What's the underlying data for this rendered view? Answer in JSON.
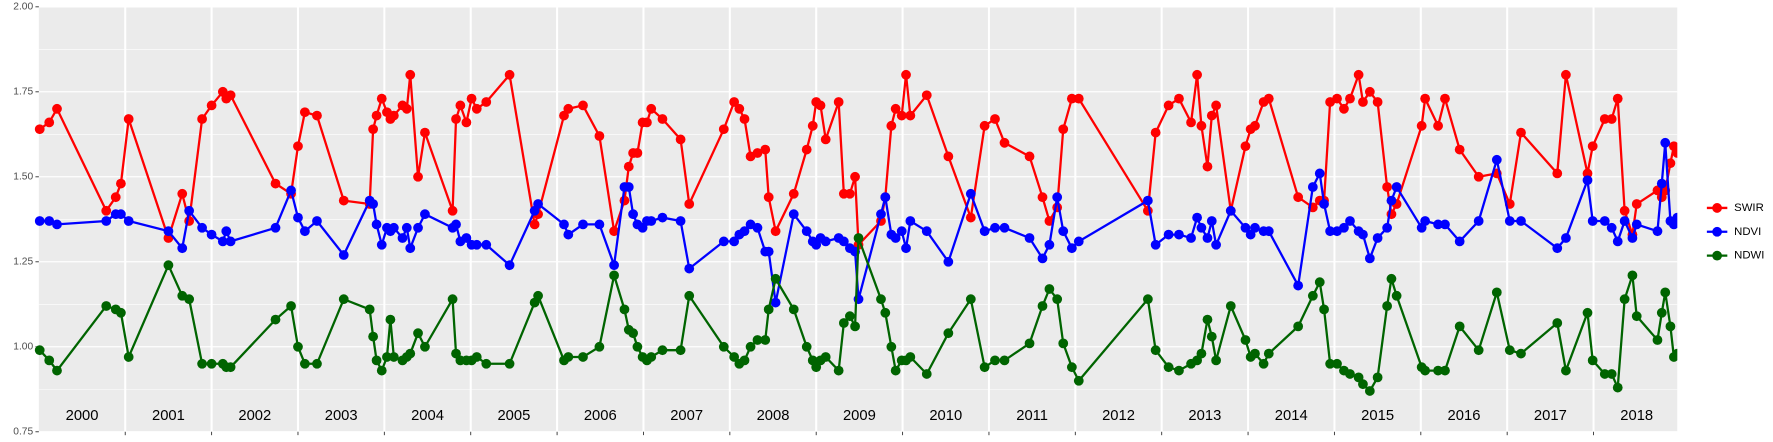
{
  "chart_data": {
    "type": "line",
    "x": [
      2000.01,
      2000.12,
      2000.21,
      2000.78,
      2000.89,
      2000.95,
      2001.04,
      2001.5,
      2001.66,
      2001.74,
      2001.89,
      2002.0,
      2002.13,
      2002.17,
      2002.22,
      2002.74,
      2002.92,
      2003.0,
      2003.08,
      2003.22,
      2003.53,
      2003.83,
      2003.87,
      2003.91,
      2003.97,
      2004.03,
      2004.07,
      2004.11,
      2004.21,
      2004.26,
      2004.3,
      2004.39,
      2004.47,
      2004.79,
      2004.83,
      2004.88,
      2004.95,
      2005.01,
      2005.07,
      2005.18,
      2005.45,
      2005.74,
      2005.78,
      2006.08,
      2006.13,
      2006.3,
      2006.49,
      2006.66,
      2006.78,
      2006.83,
      2006.88,
      2006.93,
      2006.99,
      2007.04,
      2007.09,
      2007.22,
      2007.43,
      2007.53,
      2007.93,
      2008.05,
      2008.11,
      2008.17,
      2008.24,
      2008.32,
      2008.41,
      2008.45,
      2008.53,
      2008.74,
      2008.89,
      2008.96,
      2009.0,
      2009.05,
      2009.11,
      2009.26,
      2009.32,
      2009.39,
      2009.45,
      2009.49,
      2009.75,
      2009.8,
      2009.87,
      2009.92,
      2009.99,
      2010.04,
      2010.09,
      2010.28,
      2010.53,
      2010.79,
      2010.95,
      2011.07,
      2011.18,
      2011.47,
      2011.62,
      2011.7,
      2011.79,
      2011.86,
      2011.96,
      2012.04,
      2012.84,
      2012.93,
      2013.08,
      2013.2,
      2013.34,
      2013.41,
      2013.46,
      2013.53,
      2013.58,
      2013.63,
      2013.8,
      2013.97,
      2014.03,
      2014.08,
      2014.18,
      2014.24,
      2014.58,
      2014.75,
      2014.83,
      2014.88,
      2014.95,
      2015.03,
      2015.11,
      2015.18,
      2015.28,
      2015.33,
      2015.41,
      2015.5,
      2015.61,
      2015.66,
      2015.72,
      2016.01,
      2016.05,
      2016.2,
      2016.28,
      2016.45,
      2016.67,
      2016.88,
      2017.03,
      2017.16,
      2017.58,
      2017.68,
      2017.93,
      2017.99,
      2018.13,
      2018.21,
      2018.28,
      2018.36,
      2018.45,
      2018.5,
      2018.74,
      2018.79,
      2018.83,
      2018.89,
      2018.93,
      2018.97
    ],
    "series": [
      {
        "name": "SWIR",
        "color": "#ff0000",
        "values": [
          1.64,
          1.66,
          1.7,
          1.4,
          1.44,
          1.48,
          1.67,
          1.32,
          1.45,
          1.37,
          1.67,
          1.71,
          1.75,
          1.73,
          1.74,
          1.48,
          1.45,
          1.59,
          1.69,
          1.68,
          1.43,
          1.42,
          1.64,
          1.68,
          1.73,
          1.69,
          1.67,
          1.68,
          1.71,
          1.7,
          1.8,
          1.5,
          1.63,
          1.4,
          1.67,
          1.71,
          1.66,
          1.73,
          1.7,
          1.72,
          1.8,
          1.36,
          1.39,
          1.68,
          1.7,
          1.71,
          1.62,
          1.34,
          1.43,
          1.53,
          1.57,
          1.57,
          1.66,
          1.66,
          1.7,
          1.67,
          1.61,
          1.42,
          1.64,
          1.72,
          1.7,
          1.67,
          1.56,
          1.57,
          1.58,
          1.44,
          1.34,
          1.45,
          1.58,
          1.65,
          1.72,
          1.71,
          1.61,
          1.72,
          1.45,
          1.45,
          1.5,
          1.3,
          1.37,
          1.44,
          1.65,
          1.7,
          1.68,
          1.8,
          1.68,
          1.74,
          1.56,
          1.38,
          1.65,
          1.67,
          1.6,
          1.56,
          1.44,
          1.37,
          1.41,
          1.64,
          1.73,
          1.73,
          1.4,
          1.63,
          1.71,
          1.73,
          1.66,
          1.8,
          1.65,
          1.53,
          1.68,
          1.71,
          1.4,
          1.59,
          1.64,
          1.65,
          1.72,
          1.73,
          1.44,
          1.41,
          1.43,
          1.43,
          1.72,
          1.73,
          1.7,
          1.73,
          1.8,
          1.72,
          1.75,
          1.72,
          1.47,
          1.39,
          1.42,
          1.65,
          1.73,
          1.65,
          1.73,
          1.58,
          1.5,
          1.51,
          1.42,
          1.63,
          1.51,
          1.8,
          1.51,
          1.59,
          1.67,
          1.67,
          1.73,
          1.4,
          1.33,
          1.42,
          1.46,
          1.44,
          1.46,
          1.54,
          1.59,
          1.57
        ]
      },
      {
        "name": "NDVI",
        "color": "#0000ff",
        "values": [
          1.37,
          1.37,
          1.36,
          1.37,
          1.39,
          1.39,
          1.37,
          1.34,
          1.29,
          1.4,
          1.35,
          1.33,
          1.31,
          1.34,
          1.31,
          1.35,
          1.46,
          1.38,
          1.34,
          1.37,
          1.27,
          1.43,
          1.42,
          1.36,
          1.3,
          1.35,
          1.34,
          1.35,
          1.32,
          1.35,
          1.29,
          1.35,
          1.39,
          1.35,
          1.36,
          1.31,
          1.32,
          1.3,
          1.3,
          1.3,
          1.24,
          1.4,
          1.42,
          1.36,
          1.33,
          1.36,
          1.36,
          1.24,
          1.47,
          1.47,
          1.39,
          1.36,
          1.35,
          1.37,
          1.37,
          1.38,
          1.37,
          1.23,
          1.31,
          1.31,
          1.33,
          1.34,
          1.36,
          1.35,
          1.28,
          1.28,
          1.13,
          1.39,
          1.34,
          1.31,
          1.3,
          1.32,
          1.31,
          1.32,
          1.31,
          1.29,
          1.28,
          1.14,
          1.39,
          1.44,
          1.33,
          1.32,
          1.34,
          1.29,
          1.37,
          1.34,
          1.25,
          1.45,
          1.34,
          1.35,
          1.35,
          1.32,
          1.26,
          1.3,
          1.44,
          1.34,
          1.29,
          1.31,
          1.43,
          1.3,
          1.33,
          1.33,
          1.32,
          1.38,
          1.35,
          1.32,
          1.37,
          1.3,
          1.4,
          1.35,
          1.33,
          1.35,
          1.34,
          1.34,
          1.18,
          1.47,
          1.51,
          1.42,
          1.34,
          1.34,
          1.35,
          1.37,
          1.34,
          1.33,
          1.26,
          1.32,
          1.35,
          1.43,
          1.47,
          1.35,
          1.37,
          1.36,
          1.36,
          1.31,
          1.37,
          1.55,
          1.37,
          1.37,
          1.29,
          1.32,
          1.49,
          1.37,
          1.37,
          1.35,
          1.31,
          1.37,
          1.32,
          1.36,
          1.34,
          1.48,
          1.6,
          1.37,
          1.36,
          1.38
        ]
      },
      {
        "name": "NDWI",
        "color": "#006400",
        "values": [
          0.99,
          0.96,
          0.93,
          1.12,
          1.11,
          1.1,
          0.97,
          1.24,
          1.15,
          1.14,
          0.95,
          0.95,
          0.95,
          0.94,
          0.94,
          1.08,
          1.12,
          1.0,
          0.95,
          0.95,
          1.14,
          1.11,
          1.03,
          0.96,
          0.93,
          0.97,
          1.08,
          0.97,
          0.96,
          0.97,
          0.98,
          1.04,
          1.0,
          1.14,
          0.98,
          0.96,
          0.96,
          0.96,
          0.97,
          0.95,
          0.95,
          1.13,
          1.15,
          0.96,
          0.97,
          0.97,
          1.0,
          1.21,
          1.11,
          1.05,
          1.04,
          1.0,
          0.97,
          0.96,
          0.97,
          0.99,
          0.99,
          1.15,
          1.0,
          0.97,
          0.95,
          0.96,
          1.0,
          1.02,
          1.02,
          1.11,
          1.2,
          1.11,
          1.0,
          0.96,
          0.94,
          0.96,
          0.97,
          0.93,
          1.07,
          1.09,
          1.06,
          1.32,
          1.14,
          1.1,
          1.0,
          0.93,
          0.96,
          0.96,
          0.97,
          0.92,
          1.04,
          1.14,
          0.94,
          0.96,
          0.96,
          1.01,
          1.12,
          1.17,
          1.14,
          1.01,
          0.94,
          0.9,
          1.14,
          0.99,
          0.94,
          0.93,
          0.95,
          0.96,
          0.98,
          1.08,
          1.03,
          0.96,
          1.12,
          1.02,
          0.97,
          0.98,
          0.95,
          0.98,
          1.06,
          1.15,
          1.19,
          1.11,
          0.95,
          0.95,
          0.93,
          0.92,
          0.91,
          0.89,
          0.87,
          0.91,
          1.12,
          1.2,
          1.15,
          0.94,
          0.93,
          0.93,
          0.93,
          1.06,
          0.99,
          1.16,
          0.99,
          0.98,
          1.07,
          0.93,
          1.1,
          0.96,
          0.92,
          0.92,
          0.88,
          1.14,
          1.21,
          1.09,
          1.02,
          1.1,
          1.16,
          1.06,
          0.97,
          0.98
        ]
      }
    ],
    "year_labels": [
      2000,
      2001,
      2002,
      2003,
      2004,
      2005,
      2006,
      2007,
      2008,
      2009,
      2010,
      2011,
      2012,
      2013,
      2014,
      2015,
      2016,
      2017,
      2018
    ],
    "xlim": [
      2000,
      2018.97
    ],
    "ylim": [
      0.75,
      2.0
    ],
    "yticks": [
      {
        "value": 0.75,
        "label": "0.75"
      },
      {
        "value": 1.0,
        "label": "1.00"
      },
      {
        "value": 1.25,
        "label": "1.25"
      },
      {
        "value": 1.5,
        "label": "1.50"
      },
      {
        "value": 1.75,
        "label": "1.75"
      },
      {
        "value": 2.0,
        "label": "2.00"
      }
    ],
    "grid": true,
    "legend": "right"
  }
}
